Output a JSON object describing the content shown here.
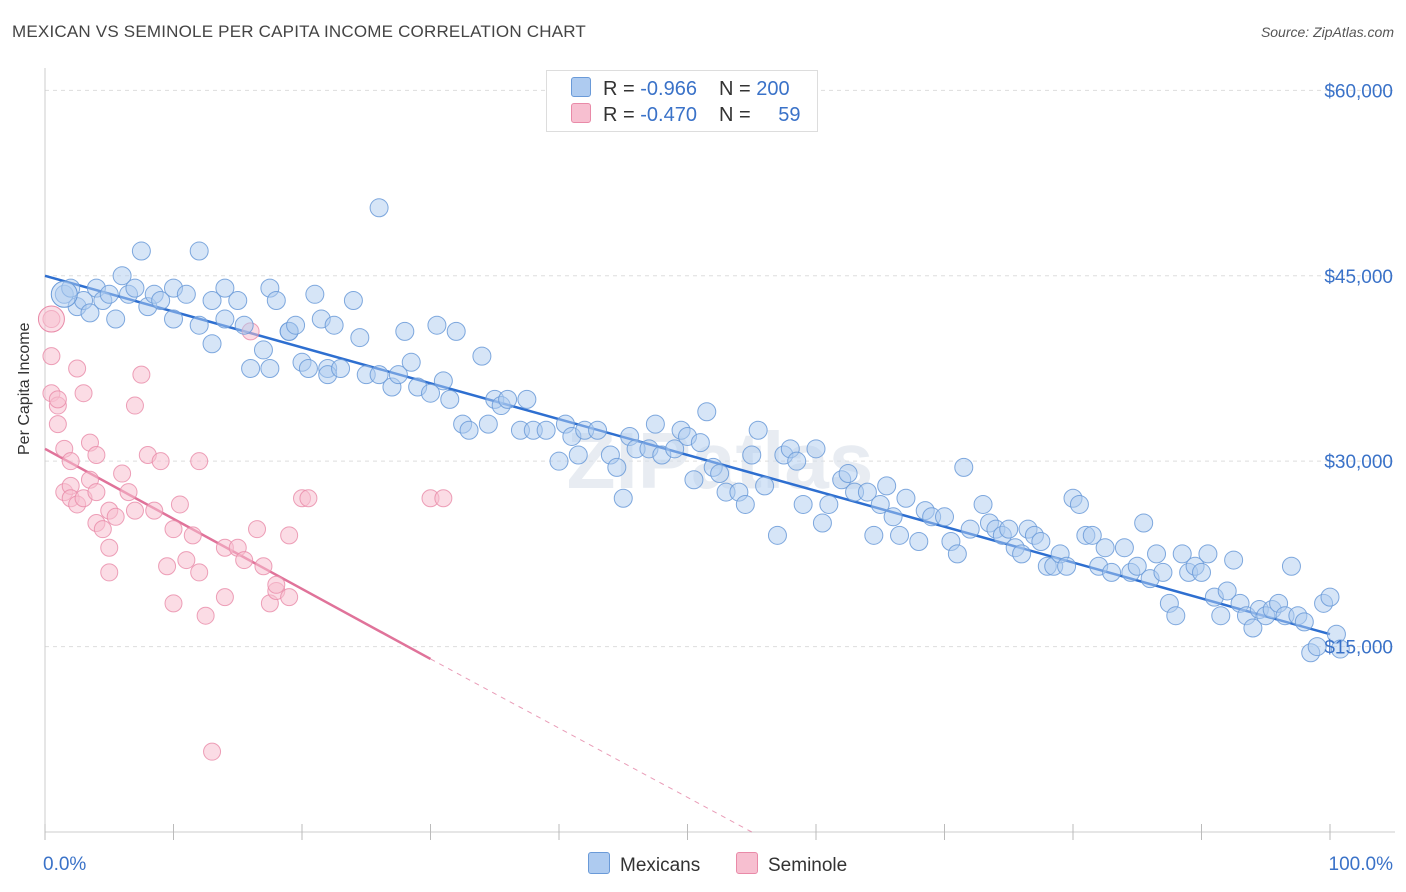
{
  "title": "MEXICAN VS SEMINOLE PER CAPITA INCOME CORRELATION CHART",
  "source": "Source: ZipAtlas.com",
  "watermark": "ZIPatlas",
  "legend": {
    "rows": [
      {
        "r_label": "R = ",
        "r_value": "-0.966",
        "n_label": "N = ",
        "n_value": "200"
      },
      {
        "r_label": "R = ",
        "r_value": "-0.470",
        "n_label": "N = ",
        "n_value": "59"
      }
    ]
  },
  "colors": {
    "mexicans_fill": "#aecbf0",
    "mexicans_stroke": "#6a9ad8",
    "mexicans_line": "#2e6fd0",
    "seminole_fill": "#f7bfd0",
    "seminole_stroke": "#e98aa8",
    "seminole_line": "#e0739a",
    "axis_text": "#3a72c8",
    "grid": "#dddddd"
  },
  "chart_data": {
    "type": "scatter",
    "xlabel": "",
    "ylabel": "Per Capita Income",
    "x_tick_labels": [
      "0.0%",
      "100.0%"
    ],
    "y_tick_labels": [
      "$60,000",
      "$45,000",
      "$30,000",
      "$15,000"
    ],
    "xlim": [
      0,
      100
    ],
    "ylim": [
      0,
      61000
    ],
    "y_gridlines": [
      15000,
      30000,
      45000,
      60000
    ],
    "legend_position": "bottom-center",
    "series": [
      {
        "name": "Mexicans",
        "trend": {
          "x": [
            0,
            100
          ],
          "y": [
            45000,
            16000
          ]
        },
        "points": [
          [
            1.5,
            43500
          ],
          [
            2,
            44000
          ],
          [
            2.5,
            42500
          ],
          [
            3,
            43000
          ],
          [
            3.5,
            42000
          ],
          [
            4,
            44000
          ],
          [
            4.5,
            43000
          ],
          [
            5,
            43500
          ],
          [
            5.5,
            41500
          ],
          [
            6,
            45000
          ],
          [
            6.5,
            43500
          ],
          [
            7,
            44000
          ],
          [
            7.5,
            47000
          ],
          [
            8,
            42500
          ],
          [
            8.5,
            43500
          ],
          [
            9,
            43000
          ],
          [
            10,
            41500
          ],
          [
            10,
            44000
          ],
          [
            11,
            43500
          ],
          [
            12,
            47000
          ],
          [
            12,
            41000
          ],
          [
            13,
            43000
          ],
          [
            13,
            39500
          ],
          [
            14,
            44000
          ],
          [
            14,
            41500
          ],
          [
            15,
            43000
          ],
          [
            15.5,
            41000
          ],
          [
            16,
            37500
          ],
          [
            17,
            39000
          ],
          [
            17.5,
            37500
          ],
          [
            17.5,
            44000
          ],
          [
            18,
            43000
          ],
          [
            19,
            40500
          ],
          [
            19,
            40500
          ],
          [
            19.5,
            41000
          ],
          [
            20,
            38000
          ],
          [
            20.5,
            37500
          ],
          [
            21,
            43500
          ],
          [
            21.5,
            41500
          ],
          [
            22,
            37500
          ],
          [
            22,
            37000
          ],
          [
            22.5,
            41000
          ],
          [
            23,
            37500
          ],
          [
            24,
            43000
          ],
          [
            24.5,
            40000
          ],
          [
            25,
            37000
          ],
          [
            26,
            37000
          ],
          [
            26,
            50500
          ],
          [
            27,
            36000
          ],
          [
            27.5,
            37000
          ],
          [
            28,
            40500
          ],
          [
            28.5,
            38000
          ],
          [
            29,
            36000
          ],
          [
            30,
            35500
          ],
          [
            30.5,
            41000
          ],
          [
            31,
            36500
          ],
          [
            31.5,
            35000
          ],
          [
            32,
            40500
          ],
          [
            32.5,
            33000
          ],
          [
            33,
            32500
          ],
          [
            34,
            38500
          ],
          [
            34.5,
            33000
          ],
          [
            35,
            35000
          ],
          [
            35.5,
            34500
          ],
          [
            36,
            35000
          ],
          [
            37,
            32500
          ],
          [
            37.5,
            35000
          ],
          [
            38,
            32500
          ],
          [
            39,
            32500
          ],
          [
            40,
            30000
          ],
          [
            40.5,
            33000
          ],
          [
            41,
            32000
          ],
          [
            41.5,
            30500
          ],
          [
            42,
            32500
          ],
          [
            43,
            32500
          ],
          [
            44,
            30500
          ],
          [
            44.5,
            29500
          ],
          [
            45,
            27000
          ],
          [
            45.5,
            32000
          ],
          [
            46,
            31000
          ],
          [
            47,
            31000
          ],
          [
            47.5,
            33000
          ],
          [
            48,
            30500
          ],
          [
            49,
            31000
          ],
          [
            49.5,
            32500
          ],
          [
            50,
            32000
          ],
          [
            50.5,
            28500
          ],
          [
            51,
            31500
          ],
          [
            51.5,
            34000
          ],
          [
            52,
            29500
          ],
          [
            52.5,
            29000
          ],
          [
            53,
            27500
          ],
          [
            54,
            27500
          ],
          [
            54.5,
            26500
          ],
          [
            55,
            30500
          ],
          [
            55.5,
            32500
          ],
          [
            56,
            28000
          ],
          [
            57,
            24000
          ],
          [
            57.5,
            30500
          ],
          [
            58,
            31000
          ],
          [
            58.5,
            30000
          ],
          [
            59,
            26500
          ],
          [
            60,
            31000
          ],
          [
            60.5,
            25000
          ],
          [
            61,
            26500
          ],
          [
            62,
            28500
          ],
          [
            62.5,
            29000
          ],
          [
            63,
            27500
          ],
          [
            64,
            27500
          ],
          [
            64.5,
            24000
          ],
          [
            65,
            26500
          ],
          [
            65.5,
            28000
          ],
          [
            66,
            25500
          ],
          [
            66.5,
            24000
          ],
          [
            67,
            27000
          ],
          [
            68,
            23500
          ],
          [
            68.5,
            26000
          ],
          [
            69,
            25500
          ],
          [
            70,
            25500
          ],
          [
            70.5,
            23500
          ],
          [
            71,
            22500
          ],
          [
            71.5,
            29500
          ],
          [
            72,
            24500
          ],
          [
            73,
            26500
          ],
          [
            73.5,
            25000
          ],
          [
            74,
            24500
          ],
          [
            74.5,
            24000
          ],
          [
            75,
            24500
          ],
          [
            75.5,
            23000
          ],
          [
            76,
            22500
          ],
          [
            76.5,
            24500
          ],
          [
            77,
            24000
          ],
          [
            77.5,
            23500
          ],
          [
            78,
            21500
          ],
          [
            78.5,
            21500
          ],
          [
            79,
            22500
          ],
          [
            79.5,
            21500
          ],
          [
            80,
            27000
          ],
          [
            80.5,
            26500
          ],
          [
            81,
            24000
          ],
          [
            81.5,
            24000
          ],
          [
            82,
            21500
          ],
          [
            82.5,
            23000
          ],
          [
            83,
            21000
          ],
          [
            84,
            23000
          ],
          [
            84.5,
            21000
          ],
          [
            85,
            21500
          ],
          [
            85.5,
            25000
          ],
          [
            86,
            20500
          ],
          [
            86.5,
            22500
          ],
          [
            87,
            21000
          ],
          [
            87.5,
            18500
          ],
          [
            88,
            17500
          ],
          [
            88.5,
            22500
          ],
          [
            89,
            21000
          ],
          [
            89.5,
            21500
          ],
          [
            90,
            21000
          ],
          [
            90.5,
            22500
          ],
          [
            91,
            19000
          ],
          [
            91.5,
            17500
          ],
          [
            92,
            19500
          ],
          [
            92.5,
            22000
          ],
          [
            93,
            18500
          ],
          [
            93.5,
            17500
          ],
          [
            94,
            16500
          ],
          [
            94.5,
            18000
          ],
          [
            95,
            17500
          ],
          [
            95.5,
            18000
          ],
          [
            96,
            18500
          ],
          [
            96.5,
            17500
          ],
          [
            97,
            21500
          ],
          [
            97.5,
            17500
          ],
          [
            98,
            17000
          ],
          [
            98.5,
            14500
          ],
          [
            99,
            15000
          ],
          [
            99.5,
            18500
          ],
          [
            100,
            19000
          ],
          [
            100.5,
            16000
          ],
          [
            100.8,
            14800
          ]
        ]
      },
      {
        "name": "Seminole",
        "trend": {
          "x": [
            0,
            30
          ],
          "y": [
            31000,
            14000
          ]
        },
        "trend_dashed": {
          "x": [
            30,
            55
          ],
          "y": [
            14000,
            0
          ]
        },
        "points": [
          [
            0.5,
            41500
          ],
          [
            0.5,
            38500
          ],
          [
            0.5,
            35500
          ],
          [
            1,
            34500
          ],
          [
            1,
            33000
          ],
          [
            1,
            35000
          ],
          [
            1.5,
            31000
          ],
          [
            1.5,
            27500
          ],
          [
            2,
            28000
          ],
          [
            2,
            27000
          ],
          [
            2,
            30000
          ],
          [
            2.5,
            26500
          ],
          [
            2.5,
            37500
          ],
          [
            3,
            35500
          ],
          [
            3,
            27000
          ],
          [
            3.5,
            31500
          ],
          [
            3.5,
            28500
          ],
          [
            4,
            27500
          ],
          [
            4,
            25000
          ],
          [
            4,
            30500
          ],
          [
            4.5,
            24500
          ],
          [
            5,
            26000
          ],
          [
            5,
            23000
          ],
          [
            5,
            21000
          ],
          [
            5.5,
            25500
          ],
          [
            6,
            29000
          ],
          [
            6.5,
            27500
          ],
          [
            7,
            26000
          ],
          [
            7,
            34500
          ],
          [
            7.5,
            37000
          ],
          [
            8,
            30500
          ],
          [
            8.5,
            26000
          ],
          [
            9,
            30000
          ],
          [
            9.5,
            21500
          ],
          [
            10,
            24500
          ],
          [
            10,
            18500
          ],
          [
            10.5,
            26500
          ],
          [
            11,
            22000
          ],
          [
            11.5,
            24000
          ],
          [
            12,
            30000
          ],
          [
            12,
            21000
          ],
          [
            12.5,
            17500
          ],
          [
            13,
            6500
          ],
          [
            14,
            23000
          ],
          [
            14,
            19000
          ],
          [
            15,
            23000
          ],
          [
            15.5,
            22000
          ],
          [
            16,
            40500
          ],
          [
            16.5,
            24500
          ],
          [
            17,
            21500
          ],
          [
            17.5,
            18500
          ],
          [
            18,
            19500
          ],
          [
            18,
            20000
          ],
          [
            19,
            24000
          ],
          [
            19,
            19000
          ],
          [
            20,
            27000
          ],
          [
            20.5,
            27000
          ],
          [
            30,
            27000
          ],
          [
            31,
            27000
          ]
        ]
      }
    ]
  }
}
